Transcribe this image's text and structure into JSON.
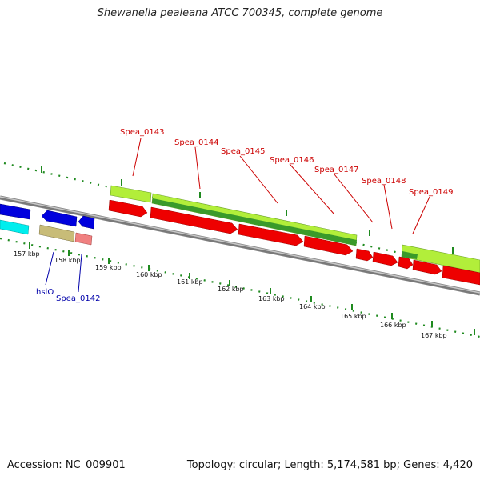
{
  "title": "Shewanella pealeana ATCC 700345, complete genome",
  "footer": {
    "accession": "Accession: NC_009901",
    "topology": "Topology: circular; Length: 5,174,581 bp; Genes: 4,420"
  },
  "colors": {
    "backbone": "#8a8a8a",
    "tick": "#1f8a1f",
    "gene_red": "#ee0000",
    "gene_blue": "#0000dd",
    "gene_cyan": "#00eeee",
    "gene_khaki": "#c8bc78",
    "gene_pink": "#f08080",
    "bar_lightgreen": "#b2ee3a",
    "bar_darkgreen": "#3a9a2a",
    "label_red": "#cc0000",
    "label_blue": "#0000aa"
  },
  "scale_labels": [
    "157 kbp",
    "158 kbp",
    "159 kbp",
    "160 kbp",
    "161 kbp",
    "162 kbp",
    "163 kbp",
    "164 kbp",
    "165 kbp",
    "166 kbp",
    "167 kbp"
  ],
  "gene_labels_red": [
    "Spea_0143",
    "Spea_0144",
    "Spea_0145",
    "Spea_0146",
    "Spea_0147",
    "Spea_0148",
    "Spea_0149"
  ],
  "gene_labels_blue": [
    "hslO",
    "Spea_0142"
  ]
}
